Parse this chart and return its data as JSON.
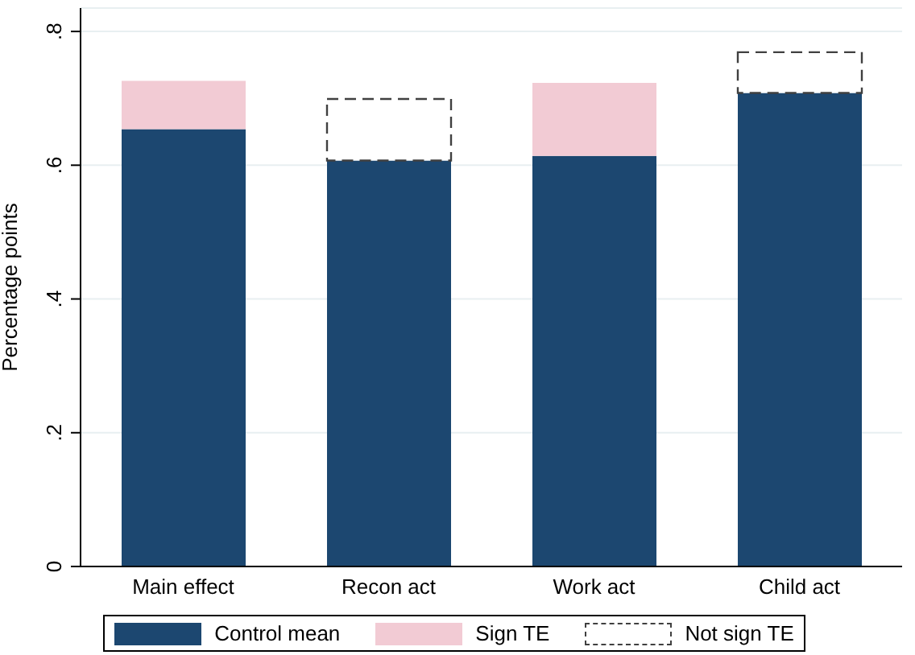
{
  "chart_data": {
    "type": "bar",
    "ylabel": "Percentage points",
    "categories": [
      "Main effect",
      "Recon act",
      "Work act",
      "Child act"
    ],
    "stacked": true,
    "series": [
      {
        "name": "Control mean",
        "color": "#1c4770",
        "values": [
          0.654,
          0.607,
          0.614,
          0.708
        ]
      },
      {
        "name": "Sign TE",
        "color": "#f2cbd4",
        "values": [
          0.072,
          null,
          0.109,
          null
        ]
      },
      {
        "name": "Not sign TE",
        "color": "#404040",
        "line_style": "dashed",
        "values": [
          null,
          0.092,
          null,
          0.061
        ]
      }
    ],
    "ylim": [
      0,
      0.835
    ],
    "yticks": [
      0,
      {
        "value": 0.2,
        "label": ".2"
      },
      {
        "value": 0.4,
        "label": ".4"
      },
      {
        "value": 0.6,
        "label": ".6"
      },
      {
        "value": 0.8,
        "label": ".8"
      }
    ],
    "grid": "y",
    "legend": "bottom"
  }
}
